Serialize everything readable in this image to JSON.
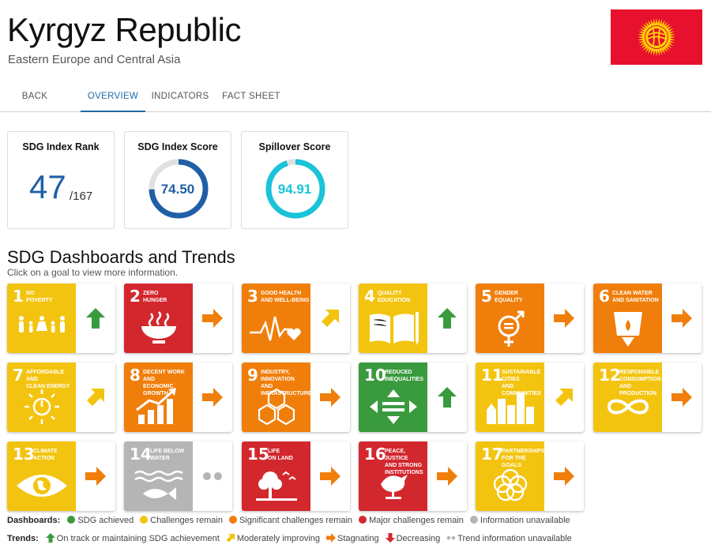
{
  "header": {
    "title": "Kyrgyz Republic",
    "region": "Eastern Europe and Central Asia"
  },
  "tabs": [
    {
      "label": "BACK"
    },
    {
      "label": "OVERVIEW",
      "active": true
    },
    {
      "label": "INDICATORS"
    },
    {
      "label": "FACT SHEET"
    }
  ],
  "stats": {
    "rank": {
      "title": "SDG Index Rank",
      "value": "47",
      "total": "/167"
    },
    "score": {
      "title": "SDG Index Score",
      "value": "74.50",
      "percent": 74.5,
      "color": "#1f5fa6"
    },
    "spillover": {
      "title": "Spillover Score",
      "value": "94.91",
      "percent": 94.91,
      "color": "#19c3d8"
    }
  },
  "section": {
    "title": "SDG Dashboards and Trends",
    "subtitle": "Click on a goal to view more information."
  },
  "colors": {
    "green": "#3a9a3e",
    "yellow": "#f3c40f",
    "orange": "#f07e0b",
    "red": "#d3272e",
    "grey": "#b5b5b5",
    "arrow_orange": "#f07e0b",
    "arrow_yellow": "#f3c40f",
    "arrow_green": "#3a9a3e"
  },
  "goals": [
    {
      "num": "1",
      "name": "NO\nPOVERTY",
      "status": "yellow",
      "trend": "up",
      "icon": "people-icon"
    },
    {
      "num": "2",
      "name": "ZERO\nHUNGER",
      "status": "red",
      "trend": "right",
      "icon": "bowl-icon"
    },
    {
      "num": "3",
      "name": "GOOD HEALTH\nAND WELL-BEING",
      "status": "orange",
      "trend": "diag",
      "icon": "heartbeat-icon"
    },
    {
      "num": "4",
      "name": "QUALITY\nEDUCATION",
      "status": "yellow",
      "trend": "up",
      "icon": "book-icon"
    },
    {
      "num": "5",
      "name": "GENDER\nEQUALITY",
      "status": "orange",
      "trend": "right",
      "icon": "gender-icon"
    },
    {
      "num": "6",
      "name": "CLEAN WATER\nAND SANITATION",
      "status": "orange",
      "trend": "right",
      "icon": "water-icon"
    },
    {
      "num": "7",
      "name": "AFFORDABLE AND\nCLEAN ENERGY",
      "status": "yellow",
      "trend": "diag",
      "icon": "energy-icon"
    },
    {
      "num": "8",
      "name": "DECENT WORK AND\nECONOMIC GROWTH",
      "status": "orange",
      "trend": "right",
      "icon": "growth-icon"
    },
    {
      "num": "9",
      "name": "INDUSTRY, INNOVATION\nAND INFRASTRUCTURE",
      "status": "orange",
      "trend": "right",
      "icon": "cubes-icon"
    },
    {
      "num": "10",
      "name": "REDUCED\nINEQUALITIES",
      "status": "green",
      "trend": "up",
      "icon": "equality-icon"
    },
    {
      "num": "11",
      "name": "SUSTAINABLE CITIES\nAND COMMUNITIES",
      "status": "yellow",
      "trend": "diag",
      "icon": "city-icon"
    },
    {
      "num": "12",
      "name": "RESPONSIBLE\nCONSUMPTION\nAND PRODUCTION",
      "status": "yellow",
      "trend": "right",
      "icon": "infinity-icon"
    },
    {
      "num": "13",
      "name": "CLIMATE\nACTION",
      "status": "yellow",
      "trend": "right",
      "icon": "eye-globe-icon"
    },
    {
      "num": "14",
      "name": "LIFE BELOW\nWATER",
      "status": "grey",
      "trend": "none",
      "icon": "fish-icon"
    },
    {
      "num": "15",
      "name": "LIFE\nON LAND",
      "status": "red",
      "trend": "right",
      "icon": "tree-icon"
    },
    {
      "num": "16",
      "name": "PEACE, JUSTICE\nAND STRONG\nINSTITUTIONS",
      "status": "red",
      "trend": "right",
      "icon": "dove-icon"
    },
    {
      "num": "17",
      "name": "PARTNERSHIPS\nFOR THE GOALS",
      "status": "yellow",
      "trend": "right",
      "icon": "rings-icon"
    }
  ],
  "legend": {
    "dashboards_label": "Dashboards:",
    "dashboards": [
      {
        "label": "SDG achieved",
        "color": "#3a9a3e"
      },
      {
        "label": "Challenges remain",
        "color": "#f3c40f"
      },
      {
        "label": "Significant challenges remain",
        "color": "#f07e0b"
      },
      {
        "label": "Major challenges remain",
        "color": "#d3272e"
      },
      {
        "label": "Information unavailable",
        "color": "#b5b5b5"
      }
    ],
    "trends_label": "Trends:",
    "trends": [
      {
        "label": "On track or maintaining SDG achievement",
        "icon": "up-arrow-icon"
      },
      {
        "label": "Moderately improving",
        "icon": "diag-arrow-icon"
      },
      {
        "label": "Stagnating",
        "icon": "right-arrow-icon"
      },
      {
        "label": "Decreasing",
        "icon": "down-arrow-icon"
      },
      {
        "label": "Trend information unavailable",
        "icon": "dots-icon"
      }
    ]
  }
}
